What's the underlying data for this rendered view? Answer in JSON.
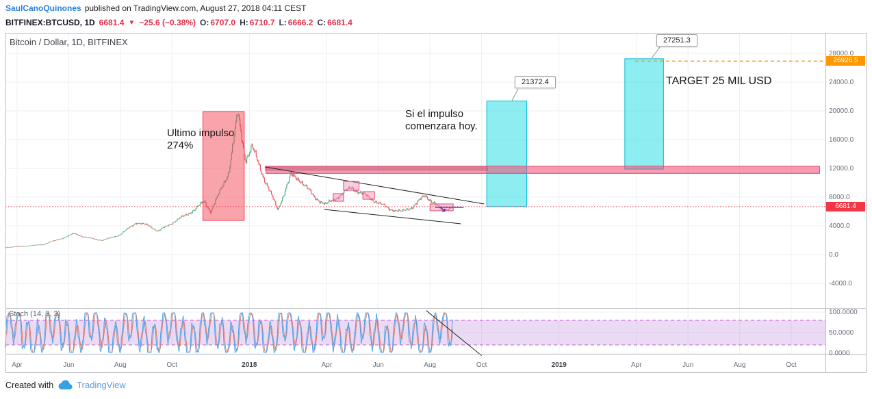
{
  "publisher_bar": {
    "author": "SaulCanoQuinones",
    "text": "published on TradingView.com, August 27, 2018 04:11 CEST"
  },
  "symbol_bar": {
    "symbol": "BITFINEX:BTCUSD, 1D",
    "price": "6681.4",
    "direction": "▼",
    "change": "−25.6 (−0.38%)",
    "open_label": "O:",
    "open": "6707.0",
    "high_label": "H:",
    "high": "6710.7",
    "low_label": "L:",
    "low": "6666.2",
    "close_label": "C:",
    "close": "6681.4"
  },
  "chart": {
    "title": "Bitcoin / Dollar, 1D, BITFINEX",
    "annotations": {
      "impulse": [
        "Ultimo impulso",
        "274%"
      ],
      "scenario": [
        "Si el impulso",
        "comenzara hoy."
      ],
      "target": "TARGET 25 MIL USD"
    },
    "callouts": [
      "21372.4",
      "27251.3"
    ],
    "price_badges": {
      "current": "6681.4",
      "target_line": "26926.5"
    }
  },
  "indicator": {
    "label": "Stoch (14, 3, 3)"
  },
  "footer": {
    "created_with": "Created with",
    "brand": "TradingView"
  },
  "chart_data": {
    "type": "candlestick",
    "symbol": "BITFINEX:BTCUSD",
    "timeframe": "1D",
    "exchange": "BITFINEX",
    "title": "Bitcoin / Dollar, 1D, BITFINEX",
    "last_bar": {
      "open": 6707.0,
      "high": 6710.7,
      "low": 6666.2,
      "close": 6681.4,
      "change": -25.6,
      "change_pct": -0.38
    },
    "y_axis": {
      "ticks": [
        28000,
        24000,
        20000,
        16000,
        12000,
        8000,
        4000,
        0,
        -4000
      ],
      "tick_labels": [
        "28000.0",
        "24000.0",
        "20000.0",
        "16000.0",
        "12000.0",
        "8000.0",
        "4000.0",
        "0.0",
        "-4000.0"
      ]
    },
    "x_axis": {
      "origin": "Apr 2017",
      "ticks": [
        {
          "label": "Apr",
          "m": 0
        },
        {
          "label": "Jun",
          "m": 2
        },
        {
          "label": "Aug",
          "m": 4
        },
        {
          "label": "Oct",
          "m": 6
        },
        {
          "label": "2018",
          "m": 9
        },
        {
          "label": "Apr",
          "m": 12
        },
        {
          "label": "Jun",
          "m": 14
        },
        {
          "label": "Aug",
          "m": 16
        },
        {
          "label": "Oct",
          "m": 18
        },
        {
          "label": "2019",
          "m": 21
        },
        {
          "label": "Apr",
          "m": 24
        },
        {
          "label": "Jun",
          "m": 26
        },
        {
          "label": "Aug",
          "m": 28
        },
        {
          "label": "Oct",
          "m": 30
        }
      ]
    },
    "price_path_monthly": [
      [
        -0.45,
        1000
      ],
      [
        0,
        1130
      ],
      [
        0.5,
        1250
      ],
      [
        1,
        1420
      ],
      [
        1.8,
        2350
      ],
      [
        2.2,
        2950
      ],
      [
        2.6,
        2450
      ],
      [
        3.3,
        1980
      ],
      [
        4,
        2800
      ],
      [
        4.6,
        4450
      ],
      [
        5.1,
        4050
      ],
      [
        5.45,
        3250
      ],
      [
        6,
        4400
      ],
      [
        6.9,
        6300
      ],
      [
        7.25,
        7450
      ],
      [
        7.5,
        5950
      ],
      [
        8.2,
        11500
      ],
      [
        8.55,
        19700
      ],
      [
        8.85,
        13200
      ],
      [
        9.1,
        15000
      ],
      [
        9.55,
        10800
      ],
      [
        10.1,
        6200
      ],
      [
        10.6,
        11050
      ],
      [
        11.0,
        10300
      ],
      [
        11.5,
        8050
      ],
      [
        11.95,
        6950
      ],
      [
        12.4,
        7950
      ],
      [
        12.95,
        9350
      ],
      [
        13.4,
        8400
      ],
      [
        13.85,
        7500
      ],
      [
        14.4,
        6400
      ],
      [
        14.9,
        5950
      ],
      [
        15.35,
        6700
      ],
      [
        15.8,
        8250
      ],
      [
        16.15,
        7200
      ],
      [
        16.45,
        6150
      ],
      [
        16.7,
        6450
      ],
      [
        16.88,
        6681.4
      ]
    ],
    "levels": {
      "current_price": 6681.4,
      "orange_dashed_price": 26926.5,
      "pink_band": {
        "price": [
          11300,
          12300
        ],
        "t": [
          9.65,
          31.1
        ]
      },
      "gray_band": {
        "price": [
          11650,
          12250
        ],
        "t": [
          9.6,
          18.25
        ]
      }
    },
    "drawings": {
      "impulse_box": {
        "t": [
          7.2,
          8.8
        ],
        "price": [
          4760,
          19900
        ]
      },
      "projection_boxes": [
        {
          "t": [
            18.2,
            19.75
          ],
          "price": [
            6681.4,
            21372.4
          ],
          "label": "21372.4"
        },
        {
          "t": [
            23.55,
            25.05
          ],
          "price": [
            11900,
            27251.3
          ],
          "label": "27251.3"
        }
      ],
      "trendlines": [
        {
          "t1": 9.6,
          "p1": 12200,
          "t2": 18.1,
          "p2": 7050
        },
        {
          "t1": 11.9,
          "p1": 6290,
          "t2": 17.2,
          "p2": 4290
        }
      ],
      "mini_boxes": [
        {
          "t": [
            12.25,
            12.65
          ],
          "price": [
            7430,
            8480
          ]
        },
        {
          "t": [
            12.65,
            13.25
          ],
          "price": [
            8950,
            10190
          ]
        },
        {
          "t": [
            13.4,
            13.85
          ],
          "price": [
            7710,
            8760
          ]
        },
        {
          "t": [
            16.0,
            16.9
          ],
          "price": [
            6100,
            7050
          ]
        }
      ],
      "blue_segment": {
        "t": [
          16.2,
          17.3
        ],
        "price": 6570
      },
      "arrow_marker": {
        "t": 16.45,
        "price": 6420,
        "glyph": "↘"
      },
      "stoch_trendline": {
        "t1": 15.85,
        "v1": 104,
        "t2": 18.0,
        "v2": -6
      }
    },
    "stochastic": {
      "name": "Stoch (14, 3, 3)",
      "band": [
        20,
        80
      ],
      "ticks": [
        100,
        50,
        0
      ],
      "tick_labels": [
        "100.0000",
        "50.0000",
        "0.0000"
      ]
    },
    "colors": {
      "up": "#4caf78",
      "down": "#e8505e",
      "impulse_box_fill": "rgba(242,54,69,0.45)",
      "impulse_box_stroke": "#f23645",
      "projection_fill": "rgba(80,227,234,0.65)",
      "projection_stroke": "#00bcd4",
      "pink_band_fill": "rgba(240,74,114,0.55)",
      "pink_band_stroke": "#e8496f",
      "gray_band_fill": "rgba(125,130,140,0.55)",
      "orange_line": "#ff9800",
      "current_line": "#f23645",
      "stoch_k": "#45a3ec",
      "stoch_d": "#e07a68",
      "stoch_band_fill": "rgba(187,134,219,0.3)",
      "stoch_band_line": "#c45ad0",
      "trendline": "#222222"
    }
  }
}
